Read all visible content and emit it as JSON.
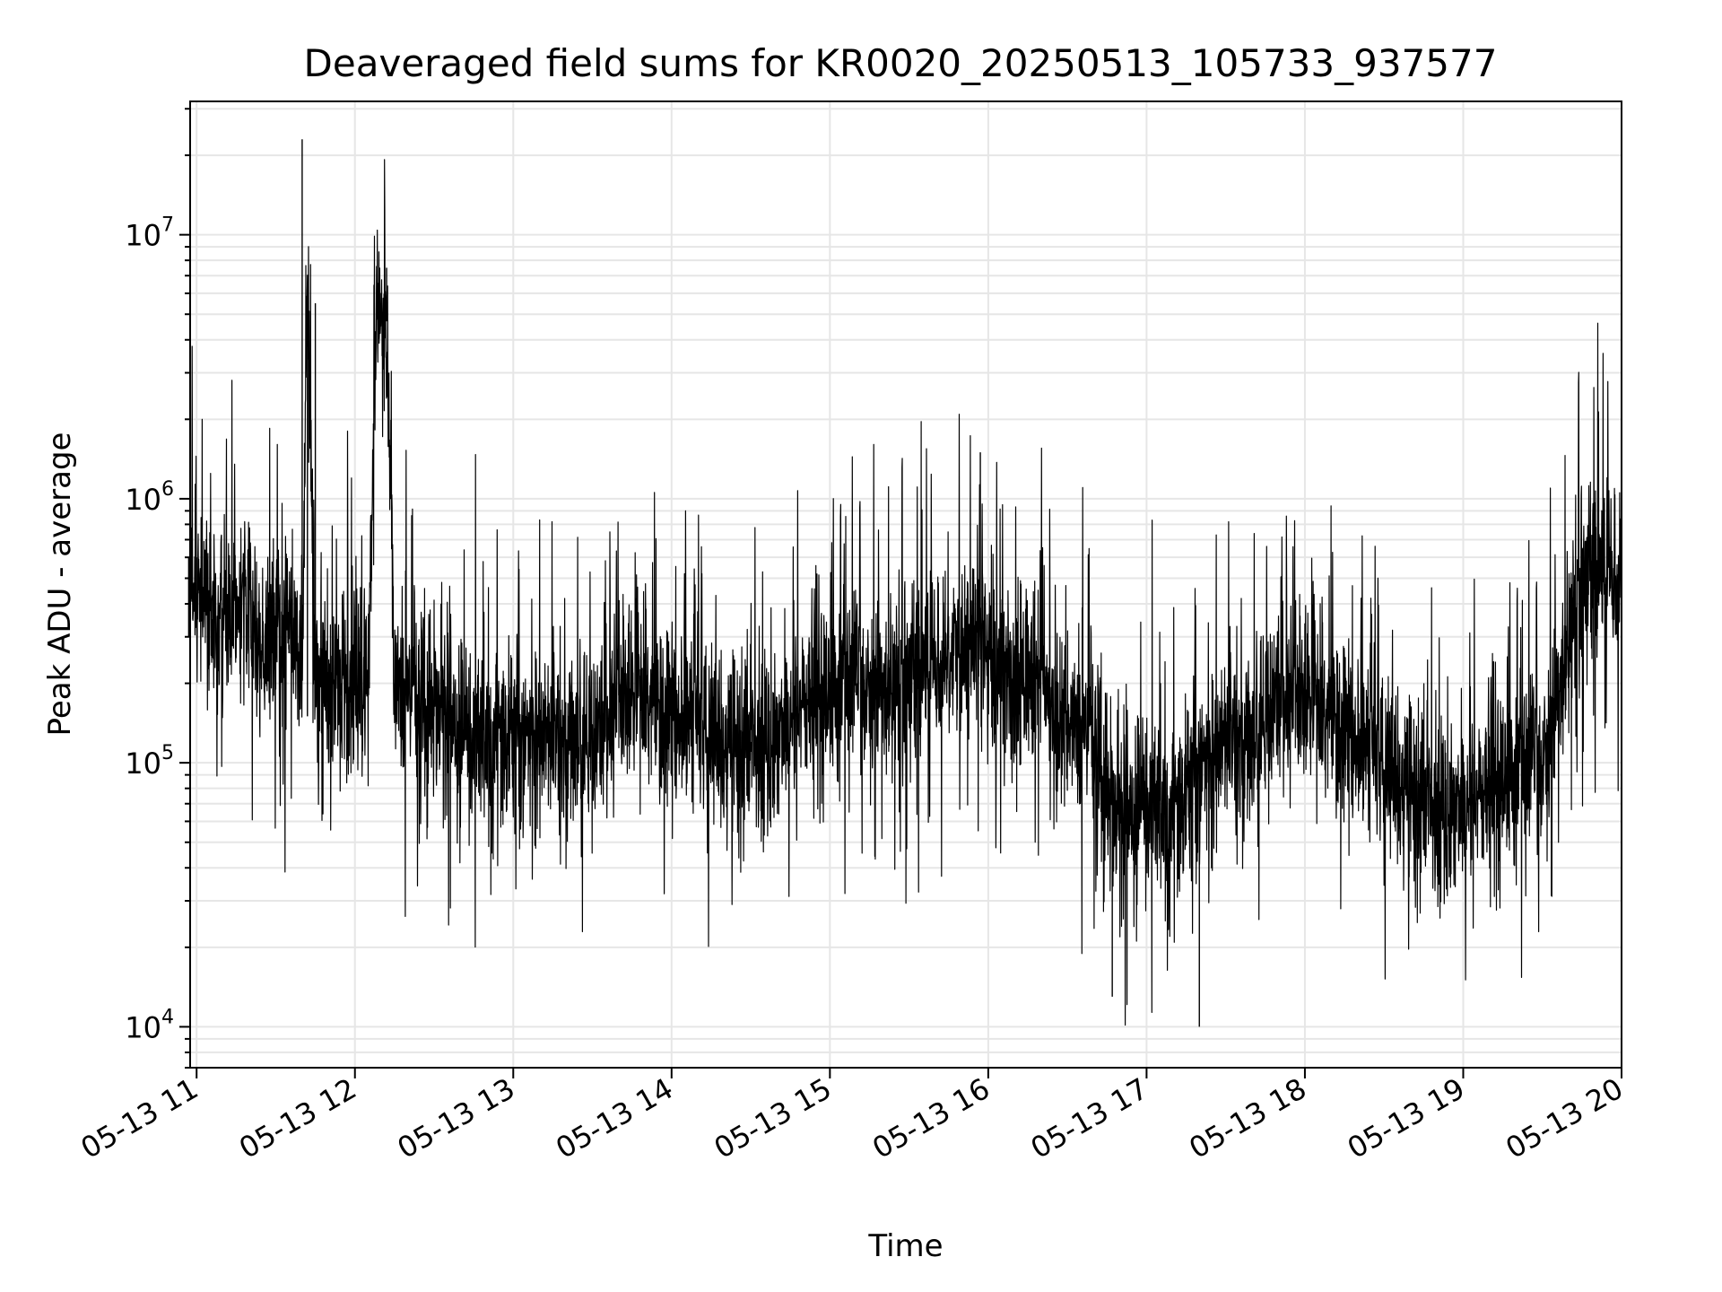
{
  "chart_data": {
    "type": "line",
    "title": "Deaveraged field sums for KR0020_20250513_105733_937577",
    "xlabel": "Time",
    "ylabel": "Peak ADU - average",
    "yscale": "log",
    "ylim": [
      7000,
      32000000
    ],
    "xlim": [
      "2025-05-13 10:57:33",
      "2025-05-13 20:00:00"
    ],
    "x_ticks": [
      "05-13 11",
      "05-13 12",
      "05-13 13",
      "05-13 14",
      "05-13 15",
      "05-13 16",
      "05-13 17",
      "05-13 18",
      "05-13 19",
      "05-13 20"
    ],
    "y_ticks": [
      {
        "value": 10000,
        "base": "10",
        "exp": "4"
      },
      {
        "value": 100000,
        "base": "10",
        "exp": "5"
      },
      {
        "value": 1000000,
        "base": "10",
        "exp": "6"
      },
      {
        "value": 10000000,
        "base": "10",
        "exp": "7"
      }
    ],
    "grid": true,
    "line_color": "#000000",
    "series": [
      {
        "x": [
          "10:57",
          "11:00",
          "11:03",
          "11:06",
          "11:10",
          "11:15",
          "11:20",
          "11:25",
          "11:30",
          "11:35",
          "11:40",
          "11:42",
          "11:45",
          "11:50",
          "11:55",
          "12:00",
          "12:05",
          "12:08",
          "12:12",
          "12:15",
          "12:20",
          "12:25",
          "12:30",
          "12:35",
          "12:40",
          "12:45",
          "12:50",
          "12:55",
          "13:00",
          "13:10",
          "13:20",
          "13:30",
          "13:40",
          "13:50",
          "14:00",
          "14:10",
          "14:20",
          "14:30",
          "14:40",
          "14:50",
          "15:00",
          "15:10",
          "15:20",
          "15:30",
          "15:40",
          "15:50",
          "15:57",
          "16:00",
          "16:10",
          "16:20",
          "16:30",
          "16:40",
          "16:47",
          "16:50",
          "17:00",
          "17:10",
          "17:20",
          "17:25",
          "17:30",
          "17:40",
          "17:50",
          "18:00",
          "18:10",
          "18:20",
          "18:30",
          "18:40",
          "18:50",
          "19:00",
          "19:10",
          "19:20",
          "19:30",
          "19:35",
          "19:40",
          "19:45",
          "19:50",
          "19:55",
          "20:00"
        ],
        "y": [
          300000,
          600000,
          400000,
          250000,
          350000,
          500000,
          400000,
          300000,
          280000,
          260000,
          23000000,
          150000,
          5500000,
          180000,
          200000,
          180000,
          190000,
          4700000,
          7500000,
          180000,
          200000,
          170000,
          150000,
          180000,
          130000,
          110000,
          120000,
          130000,
          110000,
          150000,
          120000,
          110000,
          300000,
          180000,
          140000,
          150000,
          120000,
          110000,
          130000,
          170000,
          200000,
          180000,
          220000,
          180000,
          250000,
          300000,
          1500000,
          200000,
          250000,
          200000,
          150000,
          120000,
          13000,
          70000,
          60000,
          100000,
          10000,
          130000,
          100000,
          120000,
          200000,
          180000,
          150000,
          120000,
          100000,
          80000,
          70000,
          70000,
          80000,
          90000,
          100000,
          150000,
          300000,
          500000,
          600000,
          550000,
          500000
        ]
      }
    ]
  }
}
